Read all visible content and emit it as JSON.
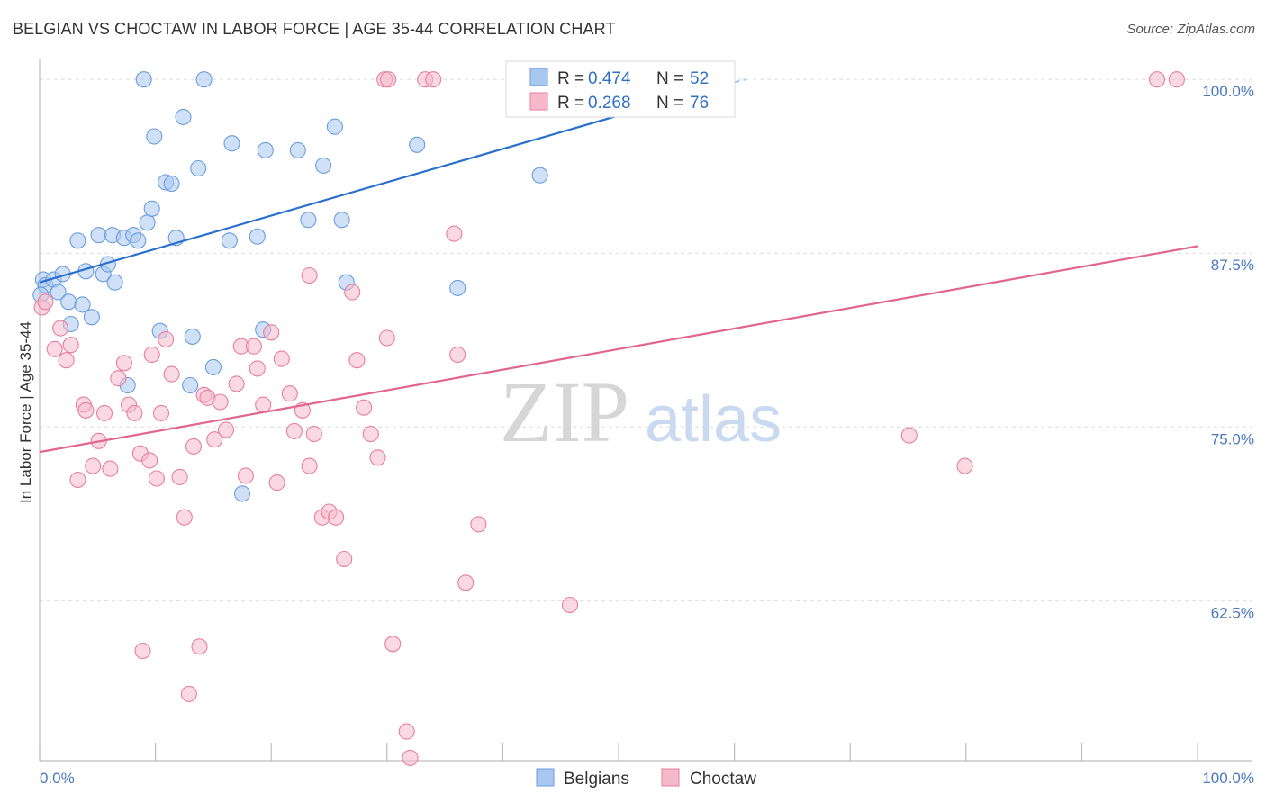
{
  "header": {
    "title": "BELGIAN VS CHOCTAW IN LABOR FORCE | AGE 35-44 CORRELATION CHART",
    "source": "Source: ZipAtlas.com"
  },
  "watermark": {
    "zip": "ZIP",
    "atlas": "atlas"
  },
  "legend": {
    "entries": [
      {
        "r_label": "R =",
        "r_value": "0.474",
        "n_label": "N =",
        "n_value": "52",
        "color": "#a9c8f0"
      },
      {
        "r_label": "R =",
        "r_value": "0.268",
        "n_label": "N =",
        "n_value": "76",
        "color": "#f6b9cb"
      }
    ]
  },
  "bottom_legend": {
    "series1": "Belgians",
    "series2": "Choctaw"
  },
  "chart_data": {
    "type": "scatter",
    "title": "BELGIAN VS CHOCTAW IN LABOR FORCE | AGE 35-44 CORRELATION CHART",
    "xlabel": "",
    "ylabel": "In Labor Force | Age 35-44",
    "x_tick_labels": [
      "0.0%",
      "100.0%"
    ],
    "y_tick_labels": [
      "100.0%",
      "87.5%",
      "75.0%",
      "62.5%"
    ],
    "xlim": [
      0,
      100
    ],
    "ylim": [
      51,
      101.5
    ],
    "y_ticks": [
      100,
      87.5,
      75,
      62.5
    ],
    "grid": true,
    "series": [
      {
        "name": "Belgians",
        "color": "#6a9de0",
        "fill": "#a9c8f0",
        "trend": {
          "x0": 0,
          "y0": 85.4,
          "x1": 60,
          "y1": 99.8,
          "color": "#2a6fcc"
        },
        "trend_ext": {
          "x0": 60,
          "y0": 99.8,
          "x1": 61,
          "y1": 100.0
        },
        "points": [
          [
            0.3,
            85.6
          ],
          [
            0.5,
            85.2
          ],
          [
            1.2,
            85.6
          ],
          [
            1.6,
            84.7
          ],
          [
            2.0,
            86.0
          ],
          [
            2.5,
            84.0
          ],
          [
            2.7,
            82.4
          ],
          [
            3.3,
            88.4
          ],
          [
            3.7,
            83.8
          ],
          [
            4.0,
            86.2
          ],
          [
            4.5,
            82.9
          ],
          [
            5.1,
            88.8
          ],
          [
            5.5,
            86.0
          ],
          [
            5.9,
            86.7
          ],
          [
            6.3,
            88.8
          ],
          [
            6.5,
            85.4
          ],
          [
            7.3,
            88.6
          ],
          [
            7.6,
            78.0
          ],
          [
            8.1,
            88.8
          ],
          [
            8.5,
            88.4
          ],
          [
            9.3,
            89.7
          ],
          [
            9.7,
            90.7
          ],
          [
            9.0,
            100.0
          ],
          [
            9.9,
            95.9
          ],
          [
            10.4,
            81.9
          ],
          [
            10.9,
            92.6
          ],
          [
            11.4,
            92.5
          ],
          [
            11.8,
            88.6
          ],
          [
            12.4,
            97.3
          ],
          [
            13.0,
            78.0
          ],
          [
            13.2,
            81.5
          ],
          [
            13.7,
            93.6
          ],
          [
            14.2,
            100.0
          ],
          [
            15.0,
            79.3
          ],
          [
            16.4,
            88.4
          ],
          [
            16.6,
            95.4
          ],
          [
            17.5,
            70.2
          ],
          [
            18.8,
            88.7
          ],
          [
            19.3,
            82.0
          ],
          [
            19.5,
            94.9
          ],
          [
            22.3,
            94.9
          ],
          [
            23.2,
            89.9
          ],
          [
            24.5,
            93.8
          ],
          [
            25.5,
            96.6
          ],
          [
            26.5,
            85.4
          ],
          [
            26.1,
            89.9
          ],
          [
            32.6,
            95.3
          ],
          [
            36.1,
            85.0
          ],
          [
            43.2,
            93.1
          ],
          [
            52.3,
            100.0
          ],
          [
            52.5,
            100.0
          ],
          [
            0.1,
            84.5
          ]
        ]
      },
      {
        "name": "Choctaw",
        "color": "#e87ea0",
        "fill": "#f6b9cb",
        "trend": {
          "x0": 0,
          "y0": 73.2,
          "x1": 100,
          "y1": 88.0,
          "color": "#e0668f"
        },
        "points": [
          [
            0.2,
            83.6
          ],
          [
            0.5,
            84.0
          ],
          [
            1.3,
            80.6
          ],
          [
            1.8,
            82.1
          ],
          [
            2.3,
            79.8
          ],
          [
            2.7,
            80.9
          ],
          [
            3.3,
            71.2
          ],
          [
            3.8,
            76.6
          ],
          [
            4.0,
            76.2
          ],
          [
            4.6,
            72.2
          ],
          [
            5.1,
            74.0
          ],
          [
            5.6,
            76.0
          ],
          [
            6.1,
            72.0
          ],
          [
            6.8,
            78.5
          ],
          [
            7.3,
            79.6
          ],
          [
            7.7,
            76.6
          ],
          [
            8.2,
            76.0
          ],
          [
            8.7,
            73.1
          ],
          [
            9.5,
            72.6
          ],
          [
            9.7,
            80.2
          ],
          [
            10.1,
            71.3
          ],
          [
            10.5,
            76.0
          ],
          [
            10.9,
            81.3
          ],
          [
            11.4,
            78.8
          ],
          [
            12.1,
            71.4
          ],
          [
            12.5,
            68.5
          ],
          [
            13.3,
            73.6
          ],
          [
            13.8,
            59.2
          ],
          [
            14.2,
            77.3
          ],
          [
            14.5,
            77.1
          ],
          [
            15.1,
            74.1
          ],
          [
            15.6,
            76.8
          ],
          [
            16.1,
            74.8
          ],
          [
            17.0,
            78.1
          ],
          [
            17.4,
            80.8
          ],
          [
            17.8,
            71.5
          ],
          [
            18.5,
            80.8
          ],
          [
            18.8,
            79.2
          ],
          [
            19.3,
            76.6
          ],
          [
            20.0,
            81.8
          ],
          [
            20.5,
            71.0
          ],
          [
            20.9,
            79.9
          ],
          [
            21.6,
            77.4
          ],
          [
            22.0,
            74.7
          ],
          [
            22.7,
            76.2
          ],
          [
            23.3,
            72.2
          ],
          [
            23.7,
            74.5
          ],
          [
            24.4,
            68.5
          ],
          [
            25.0,
            68.9
          ],
          [
            25.6,
            68.5
          ],
          [
            26.3,
            65.5
          ],
          [
            27.0,
            84.7
          ],
          [
            27.4,
            79.8
          ],
          [
            28.0,
            76.4
          ],
          [
            28.6,
            74.5
          ],
          [
            29.2,
            72.8
          ],
          [
            30.0,
            81.4
          ],
          [
            30.5,
            59.4
          ],
          [
            31.7,
            53.1
          ],
          [
            32.0,
            51.2
          ],
          [
            33.3,
            100.0
          ],
          [
            34.0,
            100.0
          ],
          [
            35.8,
            88.9
          ],
          [
            36.1,
            80.2
          ],
          [
            36.8,
            63.8
          ],
          [
            37.9,
            68.0
          ],
          [
            45.8,
            62.2
          ],
          [
            75.1,
            74.4
          ],
          [
            79.9,
            72.2
          ],
          [
            96.5,
            100.0
          ],
          [
            98.2,
            100.0
          ],
          [
            8.9,
            58.9
          ],
          [
            12.9,
            55.8
          ],
          [
            23.3,
            85.9
          ],
          [
            29.8,
            100.0
          ],
          [
            30.1,
            100.0
          ]
        ]
      }
    ]
  }
}
